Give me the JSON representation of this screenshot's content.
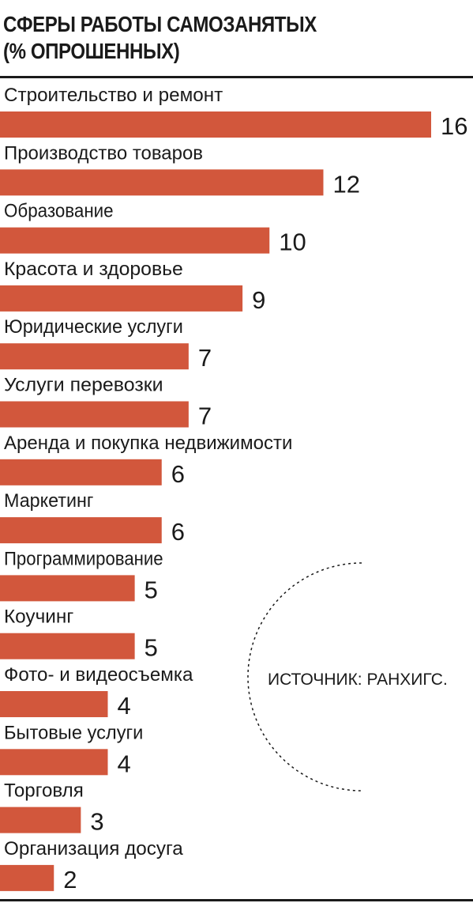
{
  "chart_data": {
    "type": "bar",
    "orientation": "horizontal",
    "title": "СФЕРЫ РАБОТЫ САМОЗАНЯТЫХ (% ОПРОШЕННЫХ)",
    "title_lines": [
      "СФЕРЫ РАБОТЫ САМОЗАНЯТЫХ",
      "(% ОПРОШЕННЫХ)"
    ],
    "categories": [
      "Строительство и ремонт",
      "Производство товаров",
      "Образование",
      "Красота и здоровье",
      "Юридические услуги",
      "Услуги перевозки",
      "Аренда и покупка недвижимости",
      "Маркетинг",
      "Программирование",
      "Коучинг",
      "Фото- и видеосъемка",
      "Бытовые услуги",
      "Торговля",
      "Организация досуга"
    ],
    "values": [
      16,
      12,
      10,
      9,
      7,
      7,
      6,
      6,
      5,
      5,
      4,
      4,
      3,
      2
    ],
    "xlim": [
      0,
      16
    ],
    "bar_color": "#d2573c",
    "grid": false,
    "legend": "none",
    "source": "ИСТОЧНИК: РАНХИГС."
  }
}
